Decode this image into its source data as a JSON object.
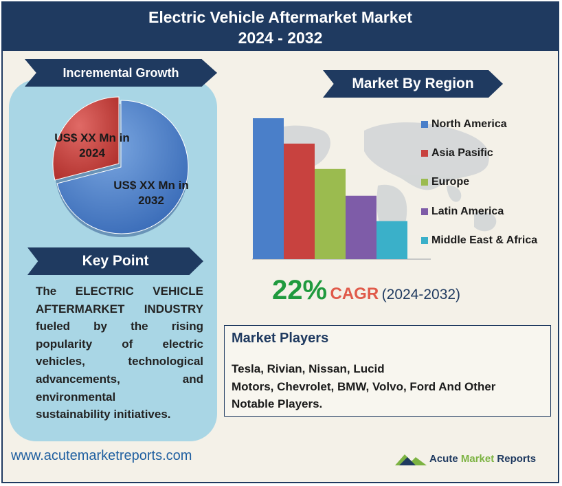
{
  "header": {
    "title_line1": "Electric Vehicle Aftermarket Market",
    "title_line2": "2024 - 2032"
  },
  "incremental_growth": {
    "label": "Incremental Growth",
    "slice_2024": "US$ XX Mn in 2024",
    "slice_2024_line1": "US$ XX Mn in",
    "slice_2024_line2": "2024",
    "slice_2032_line1": "US$ XX Mn in",
    "slice_2032_line2": "2032",
    "colors": {
      "2024": "#c8423f",
      "2032": "#4a7fc9"
    }
  },
  "key_point": {
    "label": "Key Point",
    "lines": [
      "The ELECTRIC VEHICLE",
      "AFTERMARKET INDUSTRY",
      "fueled by the rising",
      "popularity of electric",
      "vehicles, technological",
      "advancements, and",
      "environmental",
      "sustainability initiatives."
    ]
  },
  "market_by_region": {
    "label": "Market By Region"
  },
  "chart_data": {
    "type": "bar",
    "categories": [
      "North America",
      "Asia Pasific",
      "Europe",
      "Latin America",
      "Middle East & Africa"
    ],
    "values": [
      100,
      82,
      64,
      45,
      27
    ],
    "colors": [
      "#4a7fc9",
      "#c8423f",
      "#9bbb4f",
      "#7e5ca8",
      "#3ab0c9"
    ],
    "title": "",
    "xlabel": "",
    "ylabel": "",
    "ylim": [
      0,
      100
    ],
    "legend": "right",
    "grid": false
  },
  "cagr": {
    "value": "22%",
    "word": "CAGR",
    "years": "(2024-2032)"
  },
  "market_players": {
    "title": "Market Players",
    "line1": "Tesla, Rivian, Nissan, Lucid",
    "line2": "Motors, Chevrolet, BMW, Volvo, Ford And Other",
    "line3": "Notable Players."
  },
  "footer": {
    "website": "www.acutemarketreports.com",
    "logo_word1": "Acute",
    "logo_word2": "Market",
    "logo_word3": "Reports",
    "logo_colors": {
      "word1": "#1f3a60",
      "word2": "#7cb342",
      "word3": "#1f3a60"
    }
  }
}
